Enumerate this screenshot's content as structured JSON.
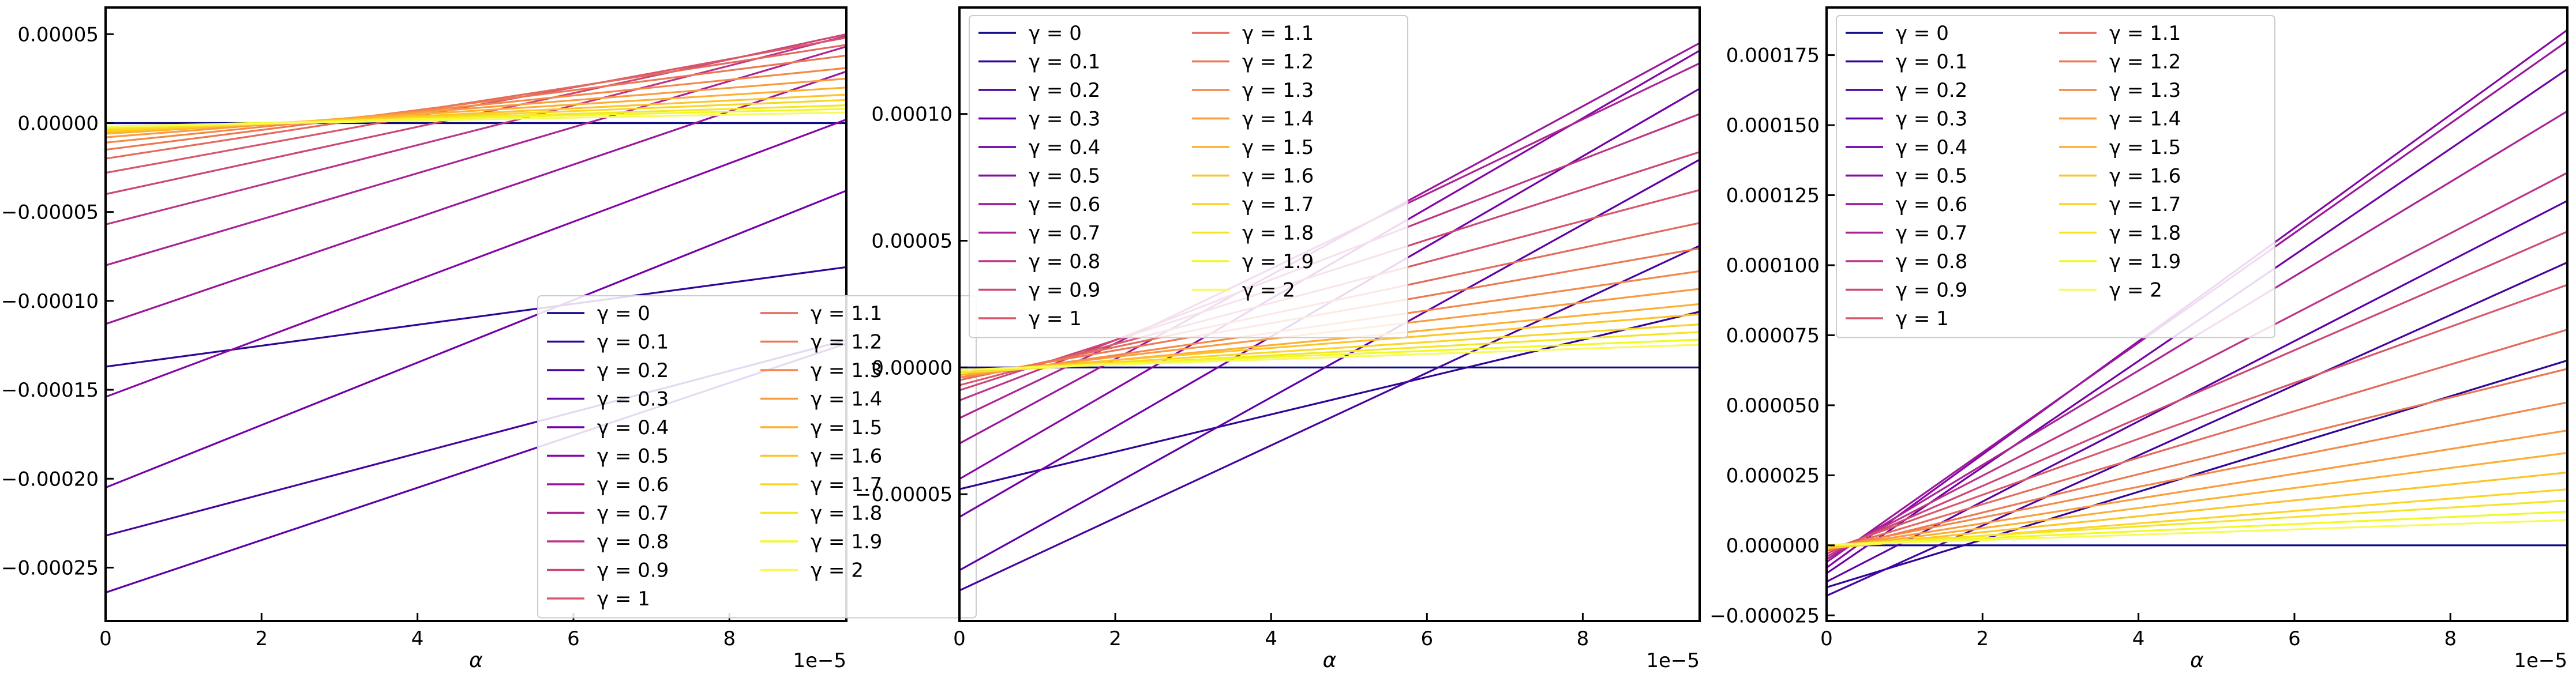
{
  "colors": {
    "gamma_0": "#0d0887",
    "gamma_0.1": "#300597",
    "gamma_0.2": "#47039f",
    "gamma_0.3": "#5c01a6",
    "gamma_0.4": "#7201a8",
    "gamma_0.5": "#8606a6",
    "gamma_0.6": "#9a179b",
    "gamma_0.7": "#ab2494",
    "gamma_0.8": "#bc3587",
    "gamma_0.9": "#cc4778",
    "gamma_1": "#d8576b",
    "gamma_1.1": "#e36a5d",
    "gamma_1.2": "#ec7853",
    "gamma_1.3": "#f48849",
    "gamma_1.4": "#f99b3e",
    "gamma_1.5": "#fdaf31",
    "gamma_1.6": "#fdc328",
    "gamma_1.7": "#fbd524",
    "gamma_1.8": "#f4e627",
    "gamma_1.9": "#f0f921",
    "gamma_2": "#f7fa5a"
  },
  "chart_data": [
    {
      "type": "line",
      "xlabel": "α",
      "x_offset_label": "1e−5",
      "x": [
        0,
        9.5e-06
      ],
      "xlim": [
        0,
        9.5e-06
      ],
      "ylim": [
        -0.00028,
        6.5e-05
      ],
      "x_ticks": [
        0,
        2e-06,
        4e-06,
        6e-06,
        8e-06
      ],
      "x_tick_labels": [
        "0",
        "2",
        "4",
        "6",
        "8"
      ],
      "y_ticks": [
        -0.00025,
        -0.0002,
        -0.00015,
        -0.0001,
        -5e-05,
        0,
        5e-05
      ],
      "y_tick_labels": [
        "−0.00025",
        "−0.00020",
        "−0.00015",
        "−0.00010",
        "−0.00005",
        "0.00000",
        "0.00005"
      ],
      "grid": false,
      "legend_position": "lower-right",
      "series": [
        {
          "name": "γ = 0",
          "values": [
            0,
            0
          ]
        },
        {
          "name": "γ = 0.1",
          "values": [
            -0.000137,
            -8.1e-05
          ]
        },
        {
          "name": "γ = 0.2",
          "values": [
            -0.000232,
            -0.000122
          ]
        },
        {
          "name": "γ = 0.3",
          "values": [
            -0.000264,
            -0.000124
          ]
        },
        {
          "name": "γ = 0.4",
          "values": [
            -0.000205,
            -3.8e-05
          ]
        },
        {
          "name": "γ = 0.5",
          "values": [
            -0.000154,
            2e-06
          ]
        },
        {
          "name": "γ = 0.6",
          "values": [
            -0.000113,
            2.9e-05
          ]
        },
        {
          "name": "γ = 0.7",
          "values": [
            -8e-05,
            4.3e-05
          ]
        },
        {
          "name": "γ = 0.8",
          "values": [
            -5.7e-05,
            4.9e-05
          ]
        },
        {
          "name": "γ = 0.9",
          "values": [
            -4e-05,
            5e-05
          ]
        },
        {
          "name": "γ = 1",
          "values": [
            -2.8e-05,
            4.8e-05
          ]
        },
        {
          "name": "γ = 1.1",
          "values": [
            -2e-05,
            4.4e-05
          ]
        },
        {
          "name": "γ = 1.2",
          "values": [
            -1.5e-05,
            3.8e-05
          ]
        },
        {
          "name": "γ = 1.3",
          "values": [
            -1.1e-05,
            3.1e-05
          ]
        },
        {
          "name": "γ = 1.4",
          "values": [
            -8e-06,
            2.5e-05
          ]
        },
        {
          "name": "γ = 1.5",
          "values": [
            -6e-06,
            2e-05
          ]
        },
        {
          "name": "γ = 1.6",
          "values": [
            -5e-06,
            1.6e-05
          ]
        },
        {
          "name": "γ = 1.7",
          "values": [
            -4e-06,
            1.3e-05
          ]
        },
        {
          "name": "γ = 1.8",
          "values": [
            -3e-06,
            1e-05
          ]
        },
        {
          "name": "γ = 1.9",
          "values": [
            -2e-06,
            8e-06
          ]
        },
        {
          "name": "γ = 2",
          "values": [
            -2e-06,
            6e-06
          ]
        }
      ]
    },
    {
      "type": "line",
      "xlabel": "α",
      "x_offset_label": "1e−5",
      "x": [
        0,
        9.5e-06
      ],
      "xlim": [
        0,
        9.5e-06
      ],
      "ylim": [
        -0.0001,
        0.000142
      ],
      "x_ticks": [
        0,
        2e-06,
        4e-06,
        6e-06,
        8e-06
      ],
      "x_tick_labels": [
        "0",
        "2",
        "4",
        "6",
        "8"
      ],
      "y_ticks": [
        -5e-05,
        0,
        5e-05,
        0.0001
      ],
      "y_tick_labels": [
        "−0.00005",
        "0.00000",
        "0.00005",
        "0.00010"
      ],
      "grid": false,
      "legend_position": "upper-left",
      "series": [
        {
          "name": "γ = 0",
          "values": [
            0,
            0
          ]
        },
        {
          "name": "γ = 0.1",
          "values": [
            -4.8e-05,
            2.2e-05
          ]
        },
        {
          "name": "γ = 0.2",
          "values": [
            -8.8e-05,
            4.8e-05
          ]
        },
        {
          "name": "γ = 0.3",
          "values": [
            -8e-05,
            8.2e-05
          ]
        },
        {
          "name": "γ = 0.4",
          "values": [
            -5.9e-05,
            0.00011
          ]
        },
        {
          "name": "γ = 0.5",
          "values": [
            -4.4e-05,
            0.000125
          ]
        },
        {
          "name": "γ = 0.6",
          "values": [
            -3e-05,
            0.000128
          ]
        },
        {
          "name": "γ = 0.7",
          "values": [
            -2e-05,
            0.00012
          ]
        },
        {
          "name": "γ = 0.8",
          "values": [
            -1.3e-05,
            0.0001
          ]
        },
        {
          "name": "γ = 0.9",
          "values": [
            -9e-06,
            8.5e-05
          ]
        },
        {
          "name": "γ = 1",
          "values": [
            -7e-06,
            7e-05
          ]
        },
        {
          "name": "γ = 1.1",
          "values": [
            -5e-06,
            5.7e-05
          ]
        },
        {
          "name": "γ = 1.2",
          "values": [
            -4e-06,
            4.7e-05
          ]
        },
        {
          "name": "γ = 1.3",
          "values": [
            -4e-06,
            3.8e-05
          ]
        },
        {
          "name": "γ = 1.4",
          "values": [
            -3e-06,
            3.1e-05
          ]
        },
        {
          "name": "γ = 1.5",
          "values": [
            -3e-06,
            2.5e-05
          ]
        },
        {
          "name": "γ = 1.6",
          "values": [
            -2e-06,
            2.1e-05
          ]
        },
        {
          "name": "γ = 1.7",
          "values": [
            -2e-06,
            1.7e-05
          ]
        },
        {
          "name": "γ = 1.8",
          "values": [
            -2e-06,
            1.4e-05
          ]
        },
        {
          "name": "γ = 1.9",
          "values": [
            -1e-06,
            1.1e-05
          ]
        },
        {
          "name": "γ = 2",
          "values": [
            -1e-06,
            9e-06
          ]
        }
      ]
    },
    {
      "type": "line",
      "xlabel": "α",
      "x_offset_label": "1e−5",
      "x": [
        0,
        9.5e-06
      ],
      "xlim": [
        0,
        9.5e-06
      ],
      "ylim": [
        -2.7e-05,
        0.000192
      ],
      "x_ticks": [
        0,
        2e-06,
        4e-06,
        6e-06,
        8e-06
      ],
      "x_tick_labels": [
        "0",
        "2",
        "4",
        "6",
        "8"
      ],
      "y_ticks": [
        -2.5e-05,
        0,
        2.5e-05,
        5e-05,
        7.5e-05,
        0.0001,
        0.000125,
        0.00015,
        0.000175
      ],
      "y_tick_labels": [
        "−0.000025",
        "0.000000",
        "0.000025",
        "0.000050",
        "0.000075",
        "0.000100",
        "0.000125",
        "0.000150",
        "0.000175"
      ],
      "grid": false,
      "legend_position": "upper-left",
      "series": [
        {
          "name": "γ = 0",
          "values": [
            0,
            0
          ]
        },
        {
          "name": "γ = 0.1",
          "values": [
            -1.5e-05,
            6.6e-05
          ]
        },
        {
          "name": "γ = 0.2",
          "values": [
            -1.8e-05,
            0.000101
          ]
        },
        {
          "name": "γ = 0.3",
          "values": [
            -1.3e-05,
            0.000123
          ]
        },
        {
          "name": "γ = 0.4",
          "values": [
            -1e-05,
            0.00017
          ]
        },
        {
          "name": "γ = 0.5",
          "values": [
            -8e-06,
            0.000184
          ]
        },
        {
          "name": "γ = 0.6",
          "values": [
            -6e-06,
            0.00018
          ]
        },
        {
          "name": "γ = 0.7",
          "values": [
            -5e-06,
            0.000155
          ]
        },
        {
          "name": "γ = 0.8",
          "values": [
            -4e-06,
            0.000133
          ]
        },
        {
          "name": "γ = 0.9",
          "values": [
            -3e-06,
            0.000112
          ]
        },
        {
          "name": "γ = 1",
          "values": [
            -2e-06,
            9.3e-05
          ]
        },
        {
          "name": "γ = 1.1",
          "values": [
            -2e-06,
            7.7e-05
          ]
        },
        {
          "name": "γ = 1.2",
          "values": [
            -2e-06,
            6.3e-05
          ]
        },
        {
          "name": "γ = 1.3",
          "values": [
            -1e-06,
            5.1e-05
          ]
        },
        {
          "name": "γ = 1.4",
          "values": [
            -1e-06,
            4.1e-05
          ]
        },
        {
          "name": "γ = 1.5",
          "values": [
            -1e-06,
            3.3e-05
          ]
        },
        {
          "name": "γ = 1.6",
          "values": [
            -1e-06,
            2.6e-05
          ]
        },
        {
          "name": "γ = 1.7",
          "values": [
            -1e-06,
            2e-05
          ]
        },
        {
          "name": "γ = 1.8",
          "values": [
            0,
            1.6e-05
          ]
        },
        {
          "name": "γ = 1.9",
          "values": [
            0,
            1.2e-05
          ]
        },
        {
          "name": "γ = 2",
          "values": [
            0,
            9e-06
          ]
        }
      ]
    }
  ]
}
